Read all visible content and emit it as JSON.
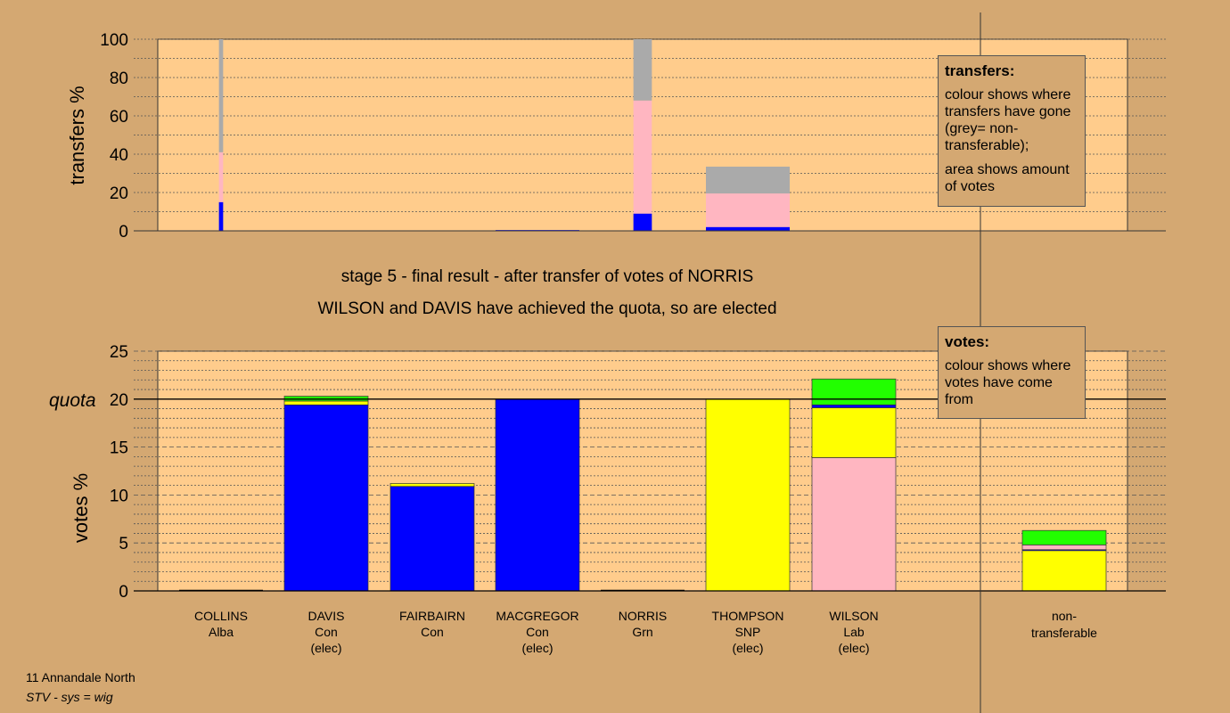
{
  "chart_data": {
    "stage_text": "stage 5 - final result - after transfer of votes of NORRIS",
    "elected_text": "WILSON and DAVIS have achieved the quota, so are elected",
    "colors": {
      "Con": "#0000ff",
      "SNP": "#ffff00",
      "Lab": "#ffb6c1",
      "Grn": "#22ff00",
      "non_transferable": "#aaaaaa"
    },
    "candidates": [
      {
        "name": "COLLINS",
        "party": "Alba",
        "status": ""
      },
      {
        "name": "DAVIS",
        "party": "Con",
        "status": "(elec)"
      },
      {
        "name": "FAIRBAIRN",
        "party": "Con",
        "status": ""
      },
      {
        "name": "MACGREGOR",
        "party": "Con",
        "status": "(elec)"
      },
      {
        "name": "NORRIS",
        "party": "Grn",
        "status": ""
      },
      {
        "name": "THOMPSON",
        "party": "SNP",
        "status": "(elec)"
      },
      {
        "name": "WILSON",
        "party": "Lab",
        "status": "(elec)"
      }
    ],
    "nontransferable_label": [
      "non-",
      "transferable"
    ],
    "transfers": {
      "type": "bar",
      "ylabel": "transfers %",
      "ylim": [
        0,
        100
      ],
      "yticks": [
        0,
        20,
        40,
        60,
        80,
        100
      ],
      "bars": [
        {
          "candidate": "COLLINS",
          "width_share": 0.05,
          "segments": [
            {
              "party": "Con",
              "value": 15
            },
            {
              "party": "Lab",
              "value": 26
            },
            {
              "party": "non_transferable",
              "value": 59
            }
          ]
        },
        {
          "candidate": "MACGREGOR",
          "width_share": 1.0,
          "segments": [
            {
              "party": "Con",
              "value": 0.4
            }
          ]
        },
        {
          "candidate": "NORRIS",
          "width_share": 0.22,
          "segments": [
            {
              "party": "Con",
              "value": 9
            },
            {
              "party": "Lab",
              "value": 59
            },
            {
              "party": "non_transferable",
              "value": 32
            }
          ]
        },
        {
          "candidate": "THOMPSON",
          "width_share": 1.0,
          "segments": [
            {
              "party": "Con",
              "value": 2
            },
            {
              "party": "Lab",
              "value": 17.5
            },
            {
              "party": "non_transferable",
              "value": 14
            }
          ]
        }
      ]
    },
    "votes": {
      "type": "bar",
      "ylabel": "votes %",
      "quota_label": "quota",
      "quota": 20,
      "ylim": [
        0,
        25
      ],
      "yticks": [
        0,
        5,
        10,
        15,
        20,
        25
      ],
      "bars": [
        {
          "candidate": "COLLINS",
          "segments": []
        },
        {
          "candidate": "DAVIS",
          "segments": [
            {
              "party": "Con",
              "value": 19.4
            },
            {
              "party": "SNP",
              "value": 0.4
            },
            {
              "party": "Grn",
              "value": 0.5
            }
          ]
        },
        {
          "candidate": "FAIRBAIRN",
          "segments": [
            {
              "party": "Con",
              "value": 10.9
            },
            {
              "party": "SNP",
              "value": 0.3
            }
          ]
        },
        {
          "candidate": "MACGREGOR",
          "segments": [
            {
              "party": "Con",
              "value": 20
            }
          ]
        },
        {
          "candidate": "NORRIS",
          "segments": []
        },
        {
          "candidate": "THOMPSON",
          "segments": [
            {
              "party": "SNP",
              "value": 20
            }
          ]
        },
        {
          "candidate": "WILSON",
          "segments": [
            {
              "party": "Lab",
              "value": 13.9
            },
            {
              "party": "SNP",
              "value": 5.2
            },
            {
              "party": "Con",
              "value": 0.3
            },
            {
              "party": "Grn",
              "value": 2.7
            }
          ]
        },
        {
          "candidate": "non-transferable",
          "segments": [
            {
              "party": "SNP",
              "value": 4.2
            },
            {
              "party": "Con",
              "value": 0.1
            },
            {
              "party": "Lab",
              "value": 0.5
            },
            {
              "party": "Grn",
              "value": 1.5
            }
          ]
        }
      ]
    },
    "legend_transfers": {
      "title": "transfers:",
      "line1": "colour shows where transfers have gone (grey= non-transferable);",
      "line2": "area shows amount of votes"
    },
    "legend_votes": {
      "title": "votes:",
      "line1": "colour shows where votes have come from"
    }
  },
  "footer": {
    "ward": "11 Annandale North",
    "system": "STV - sys = wig"
  }
}
